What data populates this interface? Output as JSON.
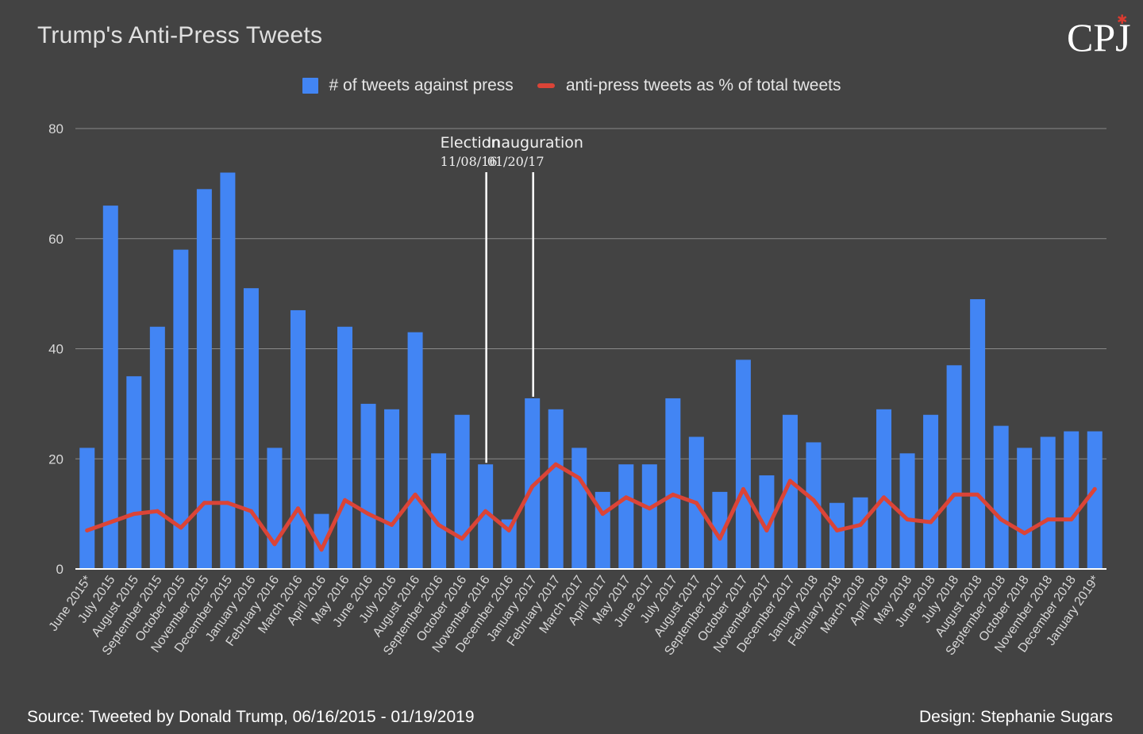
{
  "header": {
    "title": "Trump's Anti-Press Tweets",
    "logo_text": "CPJ",
    "logo_mark": "✱"
  },
  "legend": {
    "bar_label": "# of tweets against press",
    "line_label": "anti-press tweets as % of total tweets"
  },
  "colors": {
    "bars": "#4285f4",
    "line": "#db4437",
    "background": "#434343",
    "grid": "#8a8a8a"
  },
  "chart_data": {
    "type": "bar",
    "title": "Trump's Anti-Press Tweets",
    "xlabel": "",
    "ylabel": "",
    "ylim": [
      0,
      80
    ],
    "yticks": [
      0,
      20,
      40,
      60,
      80
    ],
    "grid": true,
    "legend_position": "top-center",
    "categories": [
      "June 2015*",
      "July 2015",
      "August 2015",
      "September 2015",
      "October 2015",
      "November 2015",
      "December 2015",
      "January 2016",
      "February 2016",
      "March 2016",
      "April 2016",
      "May 2016",
      "June 2016",
      "July 2016",
      "August 2016",
      "September 2016",
      "October 2016",
      "November 2016",
      "December 2016",
      "January 2017",
      "February 2017",
      "March 2017",
      "April 2017",
      "May 2017",
      "June 2017",
      "July 2017",
      "August 2017",
      "September 2017",
      "October 2017",
      "November 2017",
      "December 2017",
      "January 2018",
      "February 2018",
      "March 2018",
      "April 2018",
      "May 2018",
      "June 2018",
      "July 2018",
      "August 2018",
      "September 2018",
      "October 2018",
      "November 2018",
      "December 2018",
      "January 2019*"
    ],
    "series": [
      {
        "name": "# of tweets against press",
        "type": "bar",
        "values": [
          22,
          66,
          35,
          44,
          58,
          69,
          72,
          51,
          22,
          47,
          10,
          44,
          30,
          29,
          43,
          21,
          28,
          19,
          9,
          31,
          29,
          22,
          14,
          19,
          19,
          31,
          24,
          14,
          38,
          17,
          28,
          23,
          12,
          13,
          29,
          21,
          28,
          37,
          49,
          26,
          22,
          24,
          25,
          25
        ]
      },
      {
        "name": "anti-press tweets as % of total tweets",
        "type": "line",
        "values": [
          7,
          8.5,
          10,
          10.5,
          7.5,
          12,
          12,
          10.5,
          4.5,
          11,
          3.5,
          12.5,
          10,
          8,
          13.5,
          8,
          5.5,
          10.5,
          7,
          15,
          19,
          16.5,
          10,
          13,
          11,
          13.5,
          12,
          5.5,
          14.5,
          7,
          16,
          12.5,
          7,
          8,
          13,
          9,
          8.5,
          13.5,
          13.5,
          9,
          6.5,
          9,
          9,
          14.5
        ]
      }
    ],
    "annotations": [
      {
        "label": "Election",
        "date": "11/08/16",
        "after_category": "November 2016"
      },
      {
        "label": "Inauguration",
        "date": "01/20/17",
        "after_category": "January 2017"
      }
    ]
  },
  "footer": {
    "source": "Source: Tweeted by Donald Trump, 06/16/2015 - 01/19/2019",
    "design": "Design: Stephanie Sugars"
  }
}
